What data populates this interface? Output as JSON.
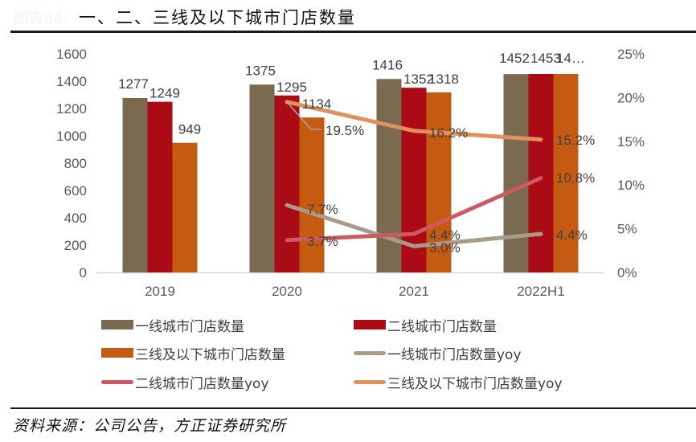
{
  "header": {
    "prefix": "图表34:",
    "title": "一、二、三线及以下城市门店数量"
  },
  "footer": {
    "source": "资料来源：公司公告，方正证券研究所"
  },
  "chart_data": {
    "type": "bar",
    "title": "一、二、三线及以下城市门店数量",
    "categories": [
      "2019",
      "2020",
      "2021",
      "2022H1"
    ],
    "y_left": {
      "ylim": [
        0,
        1600
      ],
      "ticks": [
        "0",
        "200",
        "400",
        "600",
        "800",
        "1000",
        "1200",
        "1400",
        "1600"
      ],
      "tick_values": [
        0,
        200,
        400,
        600,
        800,
        1000,
        1200,
        1400,
        1600
      ]
    },
    "y_right": {
      "ylim": [
        0,
        25
      ],
      "ticks": [
        "0%",
        "5%",
        "10%",
        "15%",
        "20%",
        "25%"
      ],
      "tick_values": [
        0,
        5,
        10,
        15,
        20,
        25
      ]
    },
    "bar_series": [
      {
        "name": "一线城市门店数量",
        "color": "#7a6a50",
        "values": [
          1277,
          1375,
          1416,
          1452
        ],
        "labels": [
          "1277",
          "1375",
          "1416",
          "1452"
        ]
      },
      {
        "name": "二线城市门店数量",
        "color": "#ab0b14",
        "values": [
          1249,
          1295,
          1352,
          1453
        ],
        "labels": [
          "1249",
          "1295",
          "1352",
          "1453"
        ]
      },
      {
        "name": "三线及以下城市门店数量",
        "color": "#c55a11",
        "values": [
          949,
          1134,
          1318,
          1453
        ],
        "labels": [
          "949",
          "1134",
          "1318",
          "14…"
        ]
      }
    ],
    "line_series": [
      {
        "name": "一线城市门店数量yoy",
        "color": "#a99b8a",
        "values": [
          null,
          7.7,
          3.0,
          4.4
        ],
        "labels": [
          null,
          "7.7%",
          "3.0%",
          "4.4%"
        ]
      },
      {
        "name": "二线城市门店数量yoy",
        "color": "#cc5a62",
        "values": [
          null,
          3.7,
          4.4,
          10.8
        ],
        "labels": [
          null,
          "3.7%",
          "4.4%",
          "10.8%"
        ]
      },
      {
        "name": "三线及以下城市门店数量yoy",
        "color": "#e0915e",
        "values": [
          null,
          19.5,
          16.2,
          15.2
        ],
        "labels": [
          null,
          "19.5%",
          "16.2%",
          "15.2%"
        ]
      }
    ],
    "legend": {
      "placement": "bottom",
      "items": [
        {
          "label": "一线城市门店数量",
          "kind": "bar",
          "color": "#7a6a50"
        },
        {
          "label": "二线城市门店数量",
          "kind": "bar",
          "color": "#ab0b14"
        },
        {
          "label": "三线及以下城市门店数量",
          "kind": "bar",
          "color": "#c55a11"
        },
        {
          "label": "一线城市门店数量yoy",
          "kind": "line",
          "color": "#a99b8a"
        },
        {
          "label": "二线城市门店数量yoy",
          "kind": "line",
          "color": "#cc5a62"
        },
        {
          "label": "三线及以下城市门店数量yoy",
          "kind": "line",
          "color": "#e0915e"
        }
      ]
    },
    "grid": false
  }
}
